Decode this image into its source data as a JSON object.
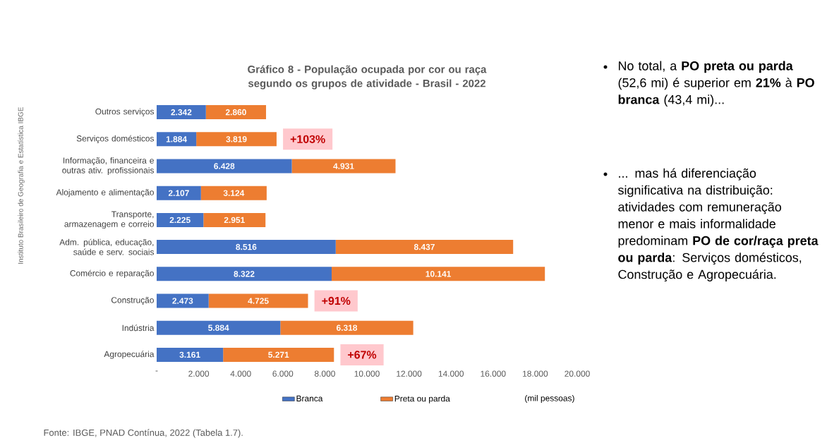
{
  "chart_data": {
    "type": "bar",
    "orientation": "horizontal",
    "stacked": true,
    "title": "Gráfico 8 - População ocupada por cor ou raça segundo os grupos de atividade - Brasil - 2022",
    "xlabel": "(mil pessoas)",
    "categories": [
      "Outros serviços",
      "Serviços domésticos",
      "Informação, financeira e outras ativ. profissionais",
      "Alojamento e alimentação",
      "Transporte, armazenagem e correio",
      "Adm. pública, educação, saúde e serv. sociais",
      "Comércio e reparação",
      "Construção",
      "Indústria",
      "Agropecuária"
    ],
    "series": [
      {
        "name": "Branca",
        "color": "#4472c4",
        "values": [
          2342,
          1884,
          6428,
          2107,
          2225,
          8516,
          8322,
          2473,
          5884,
          3161
        ],
        "value_labels": [
          "2.342",
          "1.884",
          "6.428",
          "2.107",
          "2.225",
          "8.516",
          "8.322",
          "2.473",
          "5.884",
          "3.161"
        ]
      },
      {
        "name": "Preta ou parda",
        "color": "#ed7d31",
        "values": [
          2860,
          3819,
          4931,
          3124,
          2951,
          8437,
          10141,
          4725,
          6318,
          5271
        ],
        "value_labels": [
          "2.860",
          "3.819",
          "4.931",
          "3.124",
          "2.951",
          "8.437",
          "10.141",
          "4.725",
          "6.318",
          "5.271"
        ]
      }
    ],
    "xlim": [
      0,
      20000
    ],
    "xticks": [
      {
        "value": 0,
        "label": "-"
      },
      {
        "value": 2000,
        "label": "2.000"
      },
      {
        "value": 4000,
        "label": "4.000"
      },
      {
        "value": 6000,
        "label": "6.000"
      },
      {
        "value": 8000,
        "label": "8.000"
      },
      {
        "value": 10000,
        "label": "10.000"
      },
      {
        "value": 12000,
        "label": "12.000"
      },
      {
        "value": 14000,
        "label": "14.000"
      },
      {
        "value": 16000,
        "label": "16.000"
      },
      {
        "value": 18000,
        "label": "18.000"
      },
      {
        "value": 20000,
        "label": "20.000"
      }
    ],
    "legend": "bottom",
    "grid": false,
    "annotations": [
      "No total, a **PO preta ou parda** (52,6 mi) é superior em **21%** à **PO branca** (43,4 mi)...",
      "... mas há diferenciação significativa na distribuição: atividades com remuneração menor e mais informalidade predominam **PO de cor/raça preta ou parda**: Serviços domésticos, Construção e Agropecuária.",
      "Fonte: IBGE, PNAD Contínua, 2022 (Tabela 1.7).",
      "Instituto Brasileiro de Geografia e Estatística IBGE",
      {
        "text": "+103%",
        "x": 5703,
        "y": "Serviços domésticos"
      },
      {
        "text": "+91%",
        "x": 7198,
        "y": "Construção"
      },
      {
        "text": "+67%",
        "x": 8432,
        "y": "Agropecuária"
      }
    ]
  }
}
